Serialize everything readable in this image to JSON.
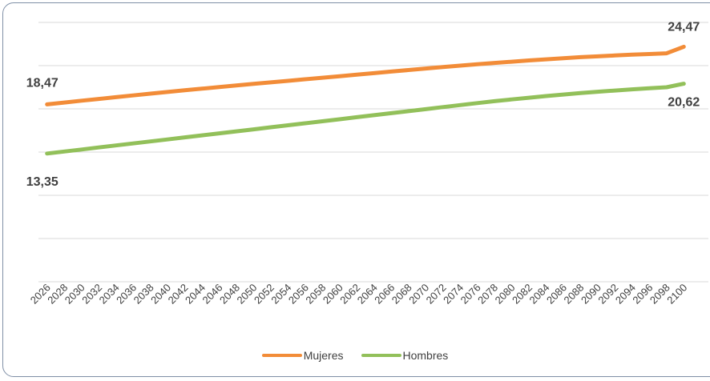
{
  "chart_data": {
    "type": "line",
    "title": "",
    "xlabel": "",
    "ylabel": "",
    "categories": [
      "2026",
      "2028",
      "2030",
      "2032",
      "2034",
      "2036",
      "2038",
      "2040",
      "2042",
      "2044",
      "2046",
      "2048",
      "2050",
      "2052",
      "2054",
      "2056",
      "2058",
      "2060",
      "2062",
      "2064",
      "2066",
      "2068",
      "2070",
      "2072",
      "2074",
      "2076",
      "2078",
      "2080",
      "2082",
      "2084",
      "2086",
      "2088",
      "2090",
      "2092",
      "2094",
      "2096",
      "2098",
      "2100"
    ],
    "ylim": [
      0,
      27
    ],
    "grid": true,
    "legend_position": "bottom",
    "series": [
      {
        "name": "Mujeres",
        "color": "#F28C38",
        "values": [
          18.47,
          18.66,
          18.85,
          19.03,
          19.22,
          19.4,
          19.58,
          19.76,
          19.93,
          20.1,
          20.27,
          20.44,
          20.6,
          20.76,
          20.92,
          21.08,
          21.24,
          21.4,
          21.56,
          21.72,
          21.88,
          22.04,
          22.2,
          22.35,
          22.5,
          22.64,
          22.78,
          22.91,
          23.04,
          23.16,
          23.27,
          23.38,
          23.47,
          23.56,
          23.64,
          23.71,
          23.78,
          24.47
        ],
        "first_label": "18,47",
        "last_label": "24,47"
      },
      {
        "name": "Hombres",
        "color": "#92C05A",
        "values": [
          13.35,
          13.56,
          13.77,
          13.98,
          14.19,
          14.4,
          14.61,
          14.82,
          15.03,
          15.24,
          15.45,
          15.66,
          15.87,
          16.08,
          16.29,
          16.5,
          16.71,
          16.92,
          17.13,
          17.34,
          17.55,
          17.76,
          17.97,
          18.18,
          18.39,
          18.6,
          18.8,
          18.98,
          19.16,
          19.33,
          19.49,
          19.64,
          19.78,
          19.91,
          20.03,
          20.15,
          20.25,
          20.62
        ],
        "first_label": "13,35",
        "last_label": "20,62"
      }
    ]
  }
}
